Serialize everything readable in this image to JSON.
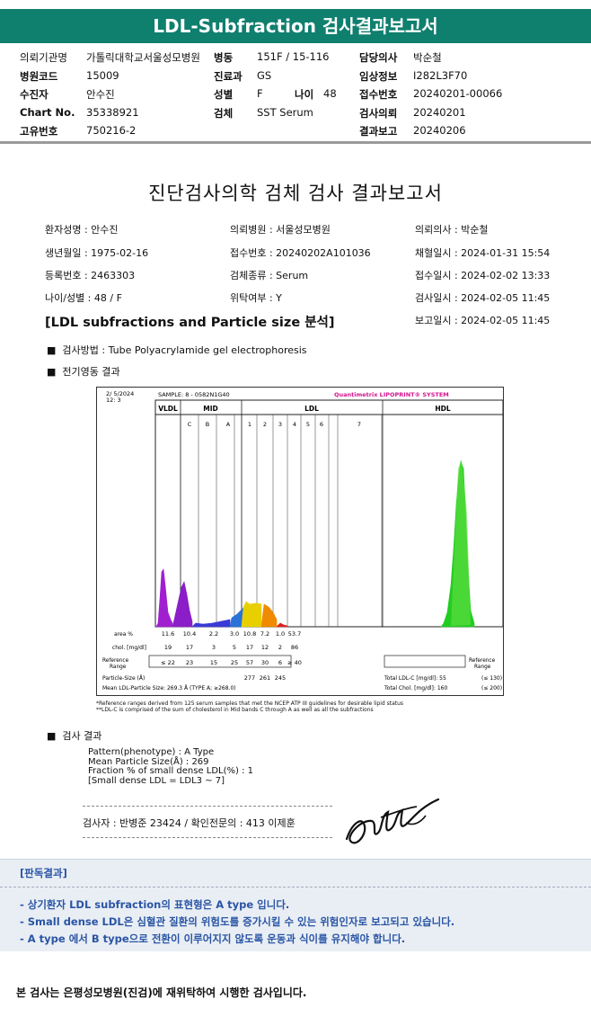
{
  "header": {
    "title": "LDL-Subfraction 검사결과보고서"
  },
  "info": [
    {
      "label": "의뢰기관명",
      "value": "가톨릭대학교서울성모병원"
    },
    {
      "label": "병동",
      "value": "151F / 15-116"
    },
    {
      "label": "담당의사",
      "value": "박순철"
    },
    {
      "label": "병원코드",
      "value": "15009"
    },
    {
      "label": "진료과",
      "value": "GS"
    },
    {
      "label": "임상정보",
      "value": "I282L3F70"
    },
    {
      "label": "수진자",
      "value": "안수진"
    },
    {
      "label": "성별",
      "value": "F"
    },
    {
      "label": "나이",
      "value": "48"
    },
    {
      "label": "접수번호",
      "value": "20240201-00066"
    },
    {
      "label": "Chart No.",
      "value": "35338921"
    },
    {
      "label": "검체",
      "value": "SST Serum"
    },
    {
      "label": "검사의뢰",
      "value": "20240201"
    },
    {
      "label": "고유번호",
      "value": "750216-2"
    },
    {
      "label": "결과보고",
      "value": "20240206"
    }
  ],
  "report": {
    "title": "진단검사의학 검체 검사 결과보고서",
    "fields": [
      "환자성명 : 안수진",
      "의뢰병원 : 서울성모병원",
      "의뢰의사 : 박순철",
      "생년월일 : 1975-02-16",
      "접수번호 : 20240202A101036",
      "채혈일시 : 2024-01-31 15:54",
      "등록번호 : 2463303",
      "검체종류 : Serum",
      "접수일시 : 2024-02-02 13:33",
      "나이/성별 : 48 / F",
      "위탁여부 : Y",
      "검사일시 : 2024-02-05 11:45",
      "보고일시 : 2024-02-05 11:45"
    ],
    "section_title": "[LDL subfractions and Particle size 분석]",
    "method": "검사방법 : Tube Polyacrylamide gel electrophoresis",
    "electro_title": "전기영동 결과",
    "result_title": "검사 결과",
    "results": [
      "Pattern(phenotype) : A Type",
      "Mean Particle Size(Å) : 269",
      "Fraction % of small dense LDL(%) : 1",
      "[Small dense LDL = LDL3 ~ 7]"
    ],
    "signer": "검사자 : 반병준 23424  /  확인전문의 : 413 이제훈"
  },
  "chart_data": {
    "type": "area",
    "date": "2/  5/2024\n12:  3",
    "sample": "SAMPLE:   8 - 0582N1G40",
    "system": "Quantimetrix LIPOPRINT® SYSTEM",
    "bands": [
      "VLDL",
      "MID",
      "LDL",
      "HDL"
    ],
    "mid_bands": [
      "C",
      "B",
      "A"
    ],
    "ldl_bands": [
      "1",
      "2",
      "3",
      "4",
      "5",
      "6",
      "7"
    ],
    "area_label": "area %",
    "area": [
      "11.6",
      "10.4",
      "2.2",
      "3.0",
      "10.8",
      "7.2",
      "1.0",
      "53.7"
    ],
    "chol_label": "chol. [mg/dl]",
    "chol": [
      "19",
      "17",
      "3",
      "5",
      "17",
      "12",
      "2",
      "86"
    ],
    "ref_label": "Reference Range",
    "ref": [
      "≤ 22",
      "23",
      "15",
      "25",
      "57",
      "30",
      "6",
      "≥ 40"
    ],
    "ps_label": "Particle-Size (Å)",
    "ps": [
      "277",
      "261",
      "245"
    ],
    "mean_size": "Mean LDL-Particle Size:   269.3 Å   (TYPE A; ≥268.0)",
    "total_ldl": "Total LDL-C [mg/dl]:   55",
    "total_ldl_ref": "(≤ 130)",
    "total_chol": "Total Chol. [mg/dl]:   160",
    "total_chol_ref": "(≤ 200)",
    "right_ref_label": "Reference Range"
  },
  "footnote": [
    "*Reference ranges derived from 125 serum samples that met the NCEP ATP III guidelines for desirable lipid status",
    "**LDL-C is comprised of the sum of cholesterol in Mid bands C through A as well as all the subfractions"
  ],
  "judgment": {
    "title": "[판독결과]",
    "lines": [
      "- 상기환자 LDL subfraction의 표현형은 A type 입니다.",
      "  -  Small dense LDL은 심혈관 질환의 위험도를 증가시킬 수 있는 위험인자로 보고되고 있습니다.",
      "  -  A type 에서 B type으로 전환이 이루어지지 않도록 운동과 식이를 유지해야 합니다."
    ]
  },
  "footer": "본 검사는 은평성모병원(진검)에 재위탁하여 시행한 검사입니다."
}
